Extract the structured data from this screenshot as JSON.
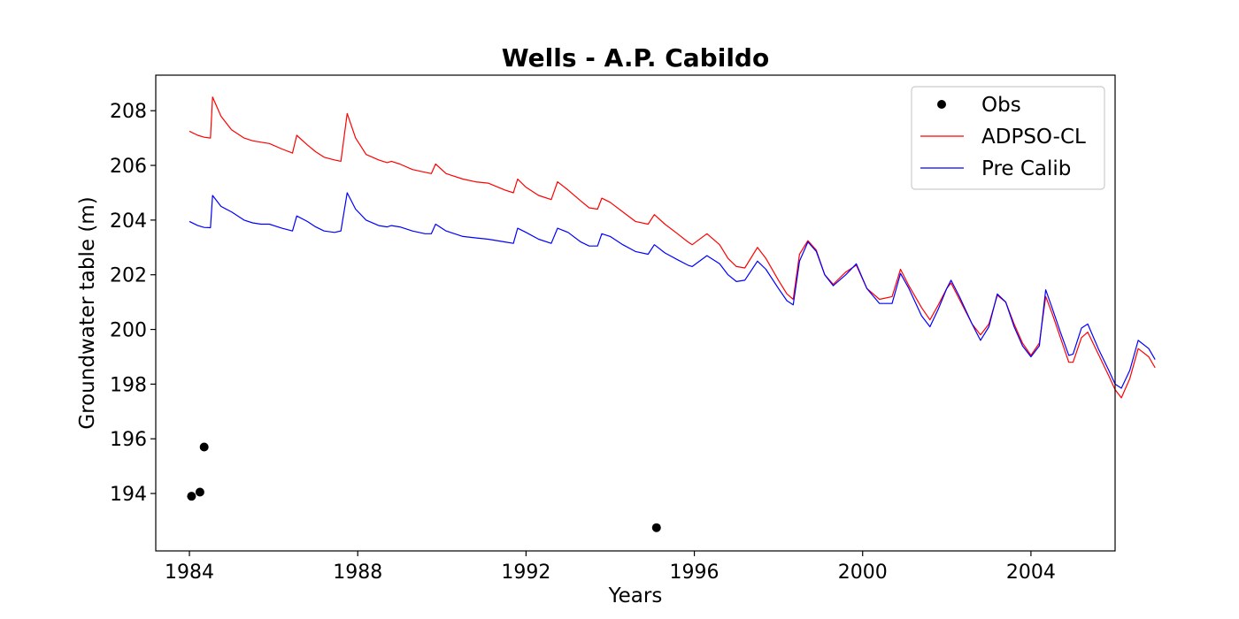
{
  "chart_data": {
    "type": "line",
    "title": "Wells - A.P. Cabildo",
    "xlabel": "Years",
    "ylabel": "Groundwater table (m)",
    "xlim": [
      1983.2,
      2006.0
    ],
    "ylim": [
      191.9,
      209.3
    ],
    "xticks": [
      1984,
      1988,
      1992,
      1996,
      2000,
      2004
    ],
    "yticks": [
      194,
      196,
      198,
      200,
      202,
      204,
      206,
      208
    ],
    "grid": false,
    "legend_position": "top-right",
    "series": [
      {
        "name": "Obs",
        "kind": "scatter",
        "color": "#000000",
        "points": [
          [
            1984.05,
            193.9
          ],
          [
            1984.25,
            194.05
          ],
          [
            1984.35,
            195.7
          ],
          [
            1995.1,
            192.75
          ]
        ]
      },
      {
        "name": "ADPSO-CL",
        "kind": "line",
        "color": "#ff0000",
        "points": [
          [
            1984.0,
            207.25
          ],
          [
            1984.2,
            207.1
          ],
          [
            1984.35,
            207.03
          ],
          [
            1984.5,
            207.0
          ],
          [
            1984.55,
            208.5
          ],
          [
            1984.75,
            207.8
          ],
          [
            1985.0,
            207.3
          ],
          [
            1985.3,
            207.0
          ],
          [
            1985.5,
            206.9
          ],
          [
            1985.7,
            206.85
          ],
          [
            1985.9,
            206.8
          ],
          [
            1986.2,
            206.6
          ],
          [
            1986.45,
            206.45
          ],
          [
            1986.55,
            207.1
          ],
          [
            1986.8,
            206.75
          ],
          [
            1987.0,
            206.5
          ],
          [
            1987.2,
            206.3
          ],
          [
            1987.45,
            206.2
          ],
          [
            1987.6,
            206.15
          ],
          [
            1987.75,
            207.9
          ],
          [
            1987.95,
            207.0
          ],
          [
            1988.2,
            206.4
          ],
          [
            1988.5,
            206.2
          ],
          [
            1988.7,
            206.1
          ],
          [
            1988.8,
            206.15
          ],
          [
            1989.0,
            206.05
          ],
          [
            1989.3,
            205.85
          ],
          [
            1989.6,
            205.75
          ],
          [
            1989.75,
            205.7
          ],
          [
            1989.85,
            206.05
          ],
          [
            1990.1,
            205.7
          ],
          [
            1990.5,
            205.5
          ],
          [
            1990.8,
            205.4
          ],
          [
            1991.1,
            205.35
          ],
          [
            1991.5,
            205.1
          ],
          [
            1991.7,
            205.0
          ],
          [
            1991.8,
            205.5
          ],
          [
            1992.0,
            205.2
          ],
          [
            1992.3,
            204.9
          ],
          [
            1992.6,
            204.75
          ],
          [
            1992.75,
            205.4
          ],
          [
            1993.0,
            205.1
          ],
          [
            1993.3,
            204.7
          ],
          [
            1993.5,
            204.45
          ],
          [
            1993.7,
            204.4
          ],
          [
            1993.8,
            204.8
          ],
          [
            1994.0,
            204.65
          ],
          [
            1994.3,
            204.3
          ],
          [
            1994.6,
            203.95
          ],
          [
            1994.9,
            203.85
          ],
          [
            1995.05,
            204.2
          ],
          [
            1995.3,
            203.85
          ],
          [
            1995.6,
            203.5
          ],
          [
            1995.85,
            203.2
          ],
          [
            1995.95,
            203.1
          ],
          [
            1996.3,
            203.5
          ],
          [
            1996.6,
            203.1
          ],
          [
            1996.8,
            202.6
          ],
          [
            1997.0,
            202.3
          ],
          [
            1997.2,
            202.25
          ],
          [
            1997.5,
            203.0
          ],
          [
            1997.7,
            202.6
          ],
          [
            1998.0,
            201.8
          ],
          [
            1998.2,
            201.3
          ],
          [
            1998.35,
            201.1
          ],
          [
            1998.5,
            202.75
          ],
          [
            1998.7,
            203.25
          ],
          [
            1998.9,
            202.9
          ],
          [
            1999.1,
            202.0
          ],
          [
            1999.3,
            201.65
          ],
          [
            1999.6,
            202.1
          ],
          [
            1999.85,
            202.35
          ],
          [
            2000.1,
            201.5
          ],
          [
            2000.4,
            201.1
          ],
          [
            2000.7,
            201.2
          ],
          [
            2000.9,
            202.2
          ],
          [
            2001.1,
            201.6
          ],
          [
            2001.4,
            200.8
          ],
          [
            2001.6,
            200.35
          ],
          [
            2001.8,
            200.9
          ],
          [
            2002.0,
            201.5
          ],
          [
            2002.1,
            201.7
          ],
          [
            2002.3,
            201.1
          ],
          [
            2002.6,
            200.2
          ],
          [
            2002.8,
            199.8
          ],
          [
            2003.0,
            200.2
          ],
          [
            2003.2,
            201.25
          ],
          [
            2003.4,
            201.0
          ],
          [
            2003.6,
            200.2
          ],
          [
            2003.8,
            199.5
          ],
          [
            2004.0,
            199.05
          ],
          [
            2004.2,
            199.5
          ],
          [
            2004.35,
            201.2
          ],
          [
            2004.5,
            200.6
          ],
          [
            2004.7,
            199.7
          ],
          [
            2004.9,
            198.8
          ],
          [
            2005.0,
            198.8
          ],
          [
            2005.2,
            199.7
          ],
          [
            2005.35,
            199.9
          ],
          [
            2005.6,
            199.1
          ],
          [
            2005.85,
            198.3
          ],
          [
            2006.0,
            197.8
          ],
          [
            2006.15,
            197.5
          ],
          [
            2006.35,
            198.2
          ],
          [
            2006.55,
            199.3
          ],
          [
            2006.8,
            199.0
          ],
          [
            2006.95,
            198.6
          ]
        ]
      },
      {
        "name": "Pre Calib",
        "kind": "line",
        "color": "#0000ff",
        "points": [
          [
            1984.0,
            203.95
          ],
          [
            1984.2,
            203.8
          ],
          [
            1984.35,
            203.73
          ],
          [
            1984.5,
            203.72
          ],
          [
            1984.55,
            204.9
          ],
          [
            1984.75,
            204.5
          ],
          [
            1985.0,
            204.3
          ],
          [
            1985.3,
            204.0
          ],
          [
            1985.5,
            203.9
          ],
          [
            1985.7,
            203.85
          ],
          [
            1985.9,
            203.85
          ],
          [
            1986.2,
            203.7
          ],
          [
            1986.45,
            203.6
          ],
          [
            1986.55,
            204.15
          ],
          [
            1986.8,
            203.95
          ],
          [
            1987.0,
            203.75
          ],
          [
            1987.2,
            203.6
          ],
          [
            1987.45,
            203.55
          ],
          [
            1987.6,
            203.6
          ],
          [
            1987.75,
            205.0
          ],
          [
            1987.95,
            204.4
          ],
          [
            1988.2,
            204.0
          ],
          [
            1988.5,
            203.8
          ],
          [
            1988.7,
            203.75
          ],
          [
            1988.8,
            203.8
          ],
          [
            1989.0,
            203.75
          ],
          [
            1989.3,
            203.6
          ],
          [
            1989.6,
            203.5
          ],
          [
            1989.75,
            203.5
          ],
          [
            1989.85,
            203.85
          ],
          [
            1990.1,
            203.6
          ],
          [
            1990.5,
            203.4
          ],
          [
            1990.8,
            203.35
          ],
          [
            1991.1,
            203.3
          ],
          [
            1991.5,
            203.2
          ],
          [
            1991.7,
            203.15
          ],
          [
            1991.8,
            203.7
          ],
          [
            1992.0,
            203.55
          ],
          [
            1992.3,
            203.3
          ],
          [
            1992.6,
            203.15
          ],
          [
            1992.75,
            203.7
          ],
          [
            1993.0,
            203.55
          ],
          [
            1993.3,
            203.2
          ],
          [
            1993.5,
            203.05
          ],
          [
            1993.7,
            203.05
          ],
          [
            1993.8,
            203.5
          ],
          [
            1994.0,
            203.4
          ],
          [
            1994.3,
            203.1
          ],
          [
            1994.6,
            202.85
          ],
          [
            1994.9,
            202.75
          ],
          [
            1995.05,
            203.1
          ],
          [
            1995.3,
            202.8
          ],
          [
            1995.6,
            202.55
          ],
          [
            1995.85,
            202.35
          ],
          [
            1995.95,
            202.3
          ],
          [
            1996.3,
            202.7
          ],
          [
            1996.6,
            202.4
          ],
          [
            1996.8,
            202.0
          ],
          [
            1997.0,
            201.75
          ],
          [
            1997.2,
            201.8
          ],
          [
            1997.5,
            202.5
          ],
          [
            1997.7,
            202.2
          ],
          [
            1998.0,
            201.5
          ],
          [
            1998.2,
            201.05
          ],
          [
            1998.35,
            200.9
          ],
          [
            1998.5,
            202.5
          ],
          [
            1998.7,
            203.2
          ],
          [
            1998.9,
            202.85
          ],
          [
            1999.1,
            202.0
          ],
          [
            1999.3,
            201.6
          ],
          [
            1999.6,
            202.0
          ],
          [
            1999.85,
            202.4
          ],
          [
            2000.1,
            201.5
          ],
          [
            2000.4,
            200.95
          ],
          [
            2000.7,
            200.95
          ],
          [
            2000.9,
            202.05
          ],
          [
            2001.1,
            201.5
          ],
          [
            2001.4,
            200.5
          ],
          [
            2001.6,
            200.1
          ],
          [
            2001.8,
            200.75
          ],
          [
            2002.0,
            201.5
          ],
          [
            2002.1,
            201.8
          ],
          [
            2002.3,
            201.2
          ],
          [
            2002.6,
            200.2
          ],
          [
            2002.8,
            199.6
          ],
          [
            2003.0,
            200.1
          ],
          [
            2003.2,
            201.3
          ],
          [
            2003.4,
            201.0
          ],
          [
            2003.6,
            200.1
          ],
          [
            2003.8,
            199.4
          ],
          [
            2004.0,
            199.0
          ],
          [
            2004.2,
            199.4
          ],
          [
            2004.35,
            201.45
          ],
          [
            2004.5,
            200.8
          ],
          [
            2004.7,
            199.9
          ],
          [
            2004.9,
            199.05
          ],
          [
            2005.0,
            199.1
          ],
          [
            2005.2,
            200.05
          ],
          [
            2005.35,
            200.2
          ],
          [
            2005.6,
            199.3
          ],
          [
            2005.85,
            198.5
          ],
          [
            2006.0,
            198.0
          ],
          [
            2006.15,
            197.85
          ],
          [
            2006.35,
            198.5
          ],
          [
            2006.55,
            199.6
          ],
          [
            2006.8,
            199.3
          ],
          [
            2006.95,
            198.9
          ]
        ]
      }
    ]
  }
}
